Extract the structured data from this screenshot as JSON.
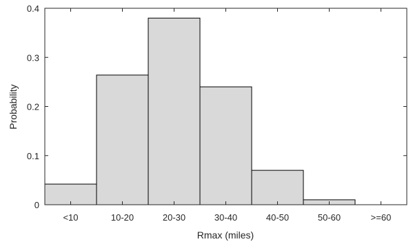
{
  "chart_data": {
    "type": "bar",
    "xlabel": "Rmax (miles)",
    "ylabel": "Probability",
    "categories": [
      "<10",
      "10-20",
      "20-30",
      "30-40",
      "40-50",
      "50-60",
      ">=60"
    ],
    "values": [
      0.042,
      0.264,
      0.38,
      0.24,
      0.07,
      0.01,
      0.0
    ],
    "ylim": [
      0,
      0.4
    ],
    "yticks": [
      0,
      0.1,
      0.2,
      0.3,
      0.4
    ],
    "ytick_labels": [
      "0",
      "0.1",
      "0.2",
      "0.3",
      "0.4"
    ],
    "grid": false,
    "legend": "none",
    "bar_fill": "#d9d9d9",
    "bar_edge": "#000000"
  }
}
